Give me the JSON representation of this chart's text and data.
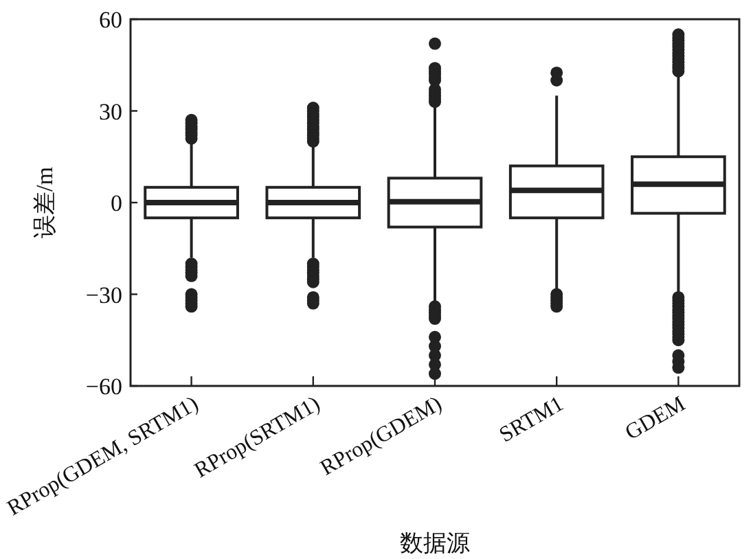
{
  "chart_data": {
    "type": "box",
    "xlabel": "数据源",
    "ylabel": "误差/m",
    "categories": [
      "RProp(GDEM, SRTM1)",
      "RProp(SRTM1)",
      "RProp(GDEM)",
      "SRTM1",
      "GDEM"
    ],
    "boxes": [
      {
        "low": -18,
        "q1": -5,
        "median": 0,
        "q3": 5,
        "high": 20,
        "outliers": [
          21,
          22,
          23,
          24,
          25,
          26,
          27,
          -20,
          -21,
          -22,
          -23,
          -24,
          -30,
          -31,
          -32,
          -33,
          -34
        ]
      },
      {
        "low": -18,
        "q1": -5,
        "median": 0,
        "q3": 5,
        "high": 19,
        "outliers": [
          20,
          21,
          22,
          23,
          24,
          25,
          26,
          27,
          28,
          29,
          30,
          31,
          -20,
          -21,
          -22,
          -23,
          -24,
          -25,
          -26,
          -31,
          -32,
          -33
        ]
      },
      {
        "low": -33,
        "q1": -8,
        "median": 0.3,
        "q3": 8,
        "high": 32,
        "outliers": [
          33,
          34,
          35,
          36,
          37,
          40,
          41,
          42,
          43,
          44,
          52,
          -34,
          -35,
          -36,
          -37,
          -38,
          -44,
          -47,
          -50,
          -53,
          -56
        ]
      },
      {
        "low": -29,
        "q1": -5,
        "median": 4,
        "q3": 12,
        "high": 35,
        "outliers": [
          40,
          42.5,
          -30,
          -31,
          -32,
          -33,
          -34
        ]
      },
      {
        "low": -30,
        "q1": -3.5,
        "median": 6,
        "q3": 15,
        "high": 42,
        "outliers": [
          43,
          44,
          45,
          46,
          47,
          48,
          49,
          50,
          51,
          52,
          53,
          54,
          55,
          -31,
          -32,
          -33,
          -34,
          -35,
          -36,
          -37,
          -38,
          -39,
          -40,
          -41,
          -42,
          -43,
          -44,
          -45,
          -50,
          -52,
          -54
        ]
      }
    ],
    "ylim": [
      -60,
      60
    ],
    "yticks": [
      -60,
      -30,
      0,
      30,
      60
    ],
    "grid": false
  }
}
